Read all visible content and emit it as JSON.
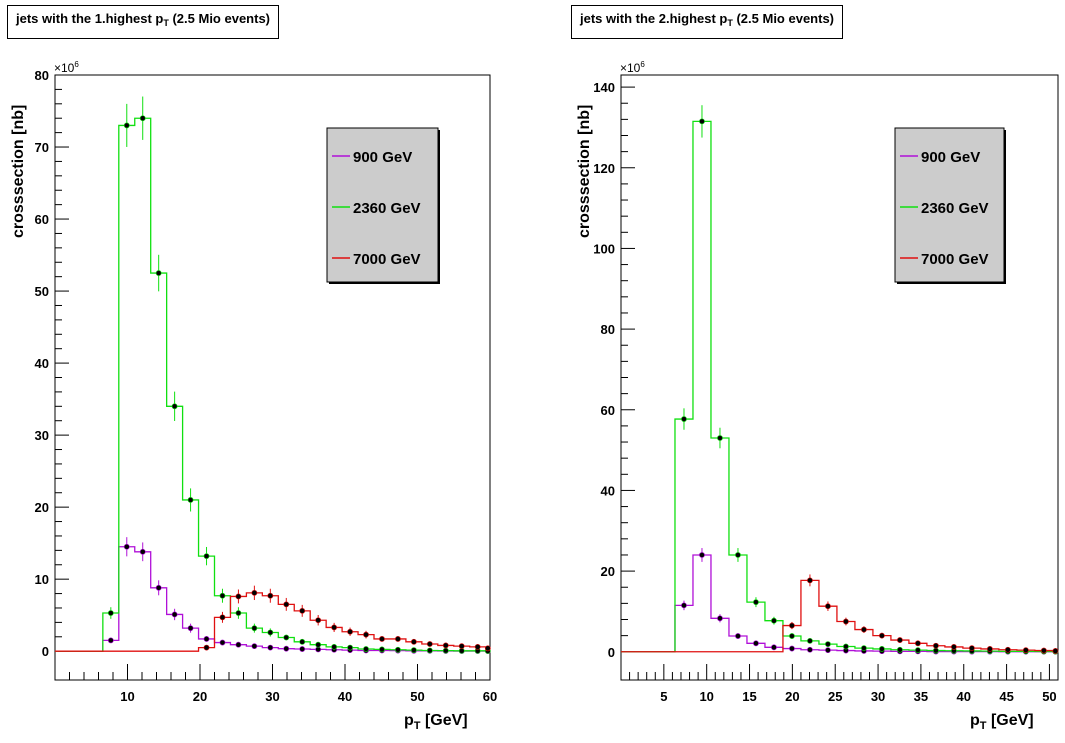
{
  "colors": {
    "series900": "#b010d8",
    "series2360": "#10e010",
    "series7000": "#e01010",
    "legend_bg": "#cccccc",
    "axis": "#000000"
  },
  "chart_data": [
    {
      "type": "line",
      "title_main": "jets with the 1.highest p",
      "title_sub": "T",
      "title_tail": " (2.5 Mio events)",
      "xlabel_main": "p",
      "xlabel_sub": "T",
      "xlabel_tail": " [GeV]",
      "ylabel": "crosssection [nb]",
      "y_exponent_base": "×10",
      "y_exponent_power": "6",
      "xlim": [
        0,
        60
      ],
      "ylim": [
        -4,
        80
      ],
      "x_ticks": [
        10,
        20,
        30,
        40,
        50,
        60
      ],
      "y_ticks": [
        0,
        10,
        20,
        30,
        40,
        50,
        60,
        70,
        80
      ],
      "bin_edges": [
        0,
        2.2,
        4.4,
        6.6,
        8.8,
        11,
        13.2,
        15.4,
        17.6,
        19.8,
        22,
        24.2,
        26.4,
        28.6,
        30.8,
        33,
        35.2,
        37.4,
        39.6,
        41.8,
        44,
        46.2,
        48.4,
        50.6,
        52.8,
        55,
        57.2,
        59.4,
        60
      ],
      "legend": [
        "900 GeV",
        "2360 GeV",
        "7000 GeV"
      ],
      "series": [
        {
          "name": "900 GeV",
          "values": [
            0,
            0,
            0,
            1.5,
            14.5,
            13.8,
            8.8,
            5.1,
            3.2,
            1.7,
            1.2,
            0.9,
            0.7,
            0.5,
            0.35,
            0.3,
            0.25,
            0.2,
            0.15,
            0.1,
            0.1,
            0.08,
            0.05,
            0.05,
            0.03,
            0.02,
            0.02,
            0.02
          ]
        },
        {
          "name": "2360 GeV",
          "values": [
            0,
            0,
            0,
            5.3,
            73,
            74,
            52.5,
            34,
            21,
            13.2,
            7.7,
            5.3,
            3.2,
            2.6,
            1.9,
            1.3,
            0.9,
            0.6,
            0.5,
            0.3,
            0.25,
            0.2,
            0.15,
            0.1,
            0.08,
            0.05,
            0.05,
            0.03
          ]
        },
        {
          "name": "7000 GeV",
          "values": [
            0,
            0,
            0,
            0,
            0,
            0,
            0,
            0,
            0,
            0.5,
            4.7,
            7.6,
            8.1,
            7.7,
            6.5,
            5.6,
            4.3,
            3.3,
            2.7,
            2.3,
            1.7,
            1.7,
            1.3,
            1.0,
            0.8,
            0.7,
            0.6,
            0.4
          ]
        }
      ]
    },
    {
      "type": "line",
      "title_main": "jets with the 2.highest p",
      "title_sub": "T",
      "title_tail": " (2.5 Mio events)",
      "xlabel_main": "p",
      "xlabel_sub": "T",
      "xlabel_tail": " [GeV]",
      "ylabel": "crosssection [nb]",
      "y_exponent_base": "×10",
      "y_exponent_power": "6",
      "xlim": [
        0,
        51
      ],
      "ylim": [
        -7,
        143
      ],
      "x_ticks": [
        5,
        10,
        15,
        20,
        25,
        30,
        35,
        40,
        45,
        50
      ],
      "y_ticks": [
        0,
        20,
        40,
        60,
        80,
        100,
        120,
        140
      ],
      "bin_edges": [
        0,
        2.1,
        4.2,
        6.3,
        8.4,
        10.5,
        12.6,
        14.7,
        16.8,
        18.9,
        21,
        23.1,
        25.2,
        27.3,
        29.4,
        31.5,
        33.6,
        35.7,
        37.8,
        39.9,
        42,
        44.1,
        46.2,
        48.3,
        50.4,
        51
      ],
      "legend": [
        "900 GeV",
        "2360 GeV",
        "7000 GeV"
      ],
      "series": [
        {
          "name": "900 GeV",
          "values": [
            0,
            0,
            0,
            11.5,
            24,
            8.3,
            3.9,
            2.1,
            1.1,
            0.8,
            0.5,
            0.4,
            0.3,
            0.2,
            0.15,
            0.1,
            0.1,
            0.05,
            0.05,
            0.03,
            0.03,
            0.02,
            0.02,
            0.02,
            0.01
          ]
        },
        {
          "name": "2360 GeV",
          "values": [
            0,
            0,
            0,
            57.7,
            131.5,
            53,
            24,
            12.3,
            7.7,
            3.9,
            2.7,
            1.9,
            1.3,
            0.9,
            0.7,
            0.5,
            0.4,
            0.3,
            0.25,
            0.2,
            0.15,
            0.1,
            0.1,
            0.08,
            0.05
          ]
        },
        {
          "name": "7000 GeV",
          "values": [
            0,
            0,
            0,
            0,
            0,
            0,
            0,
            0,
            0,
            6.5,
            17.7,
            11.3,
            7.5,
            5.5,
            4.0,
            2.9,
            2.1,
            1.5,
            1.2,
            0.9,
            0.7,
            0.5,
            0.4,
            0.3,
            0.2
          ]
        }
      ]
    }
  ]
}
